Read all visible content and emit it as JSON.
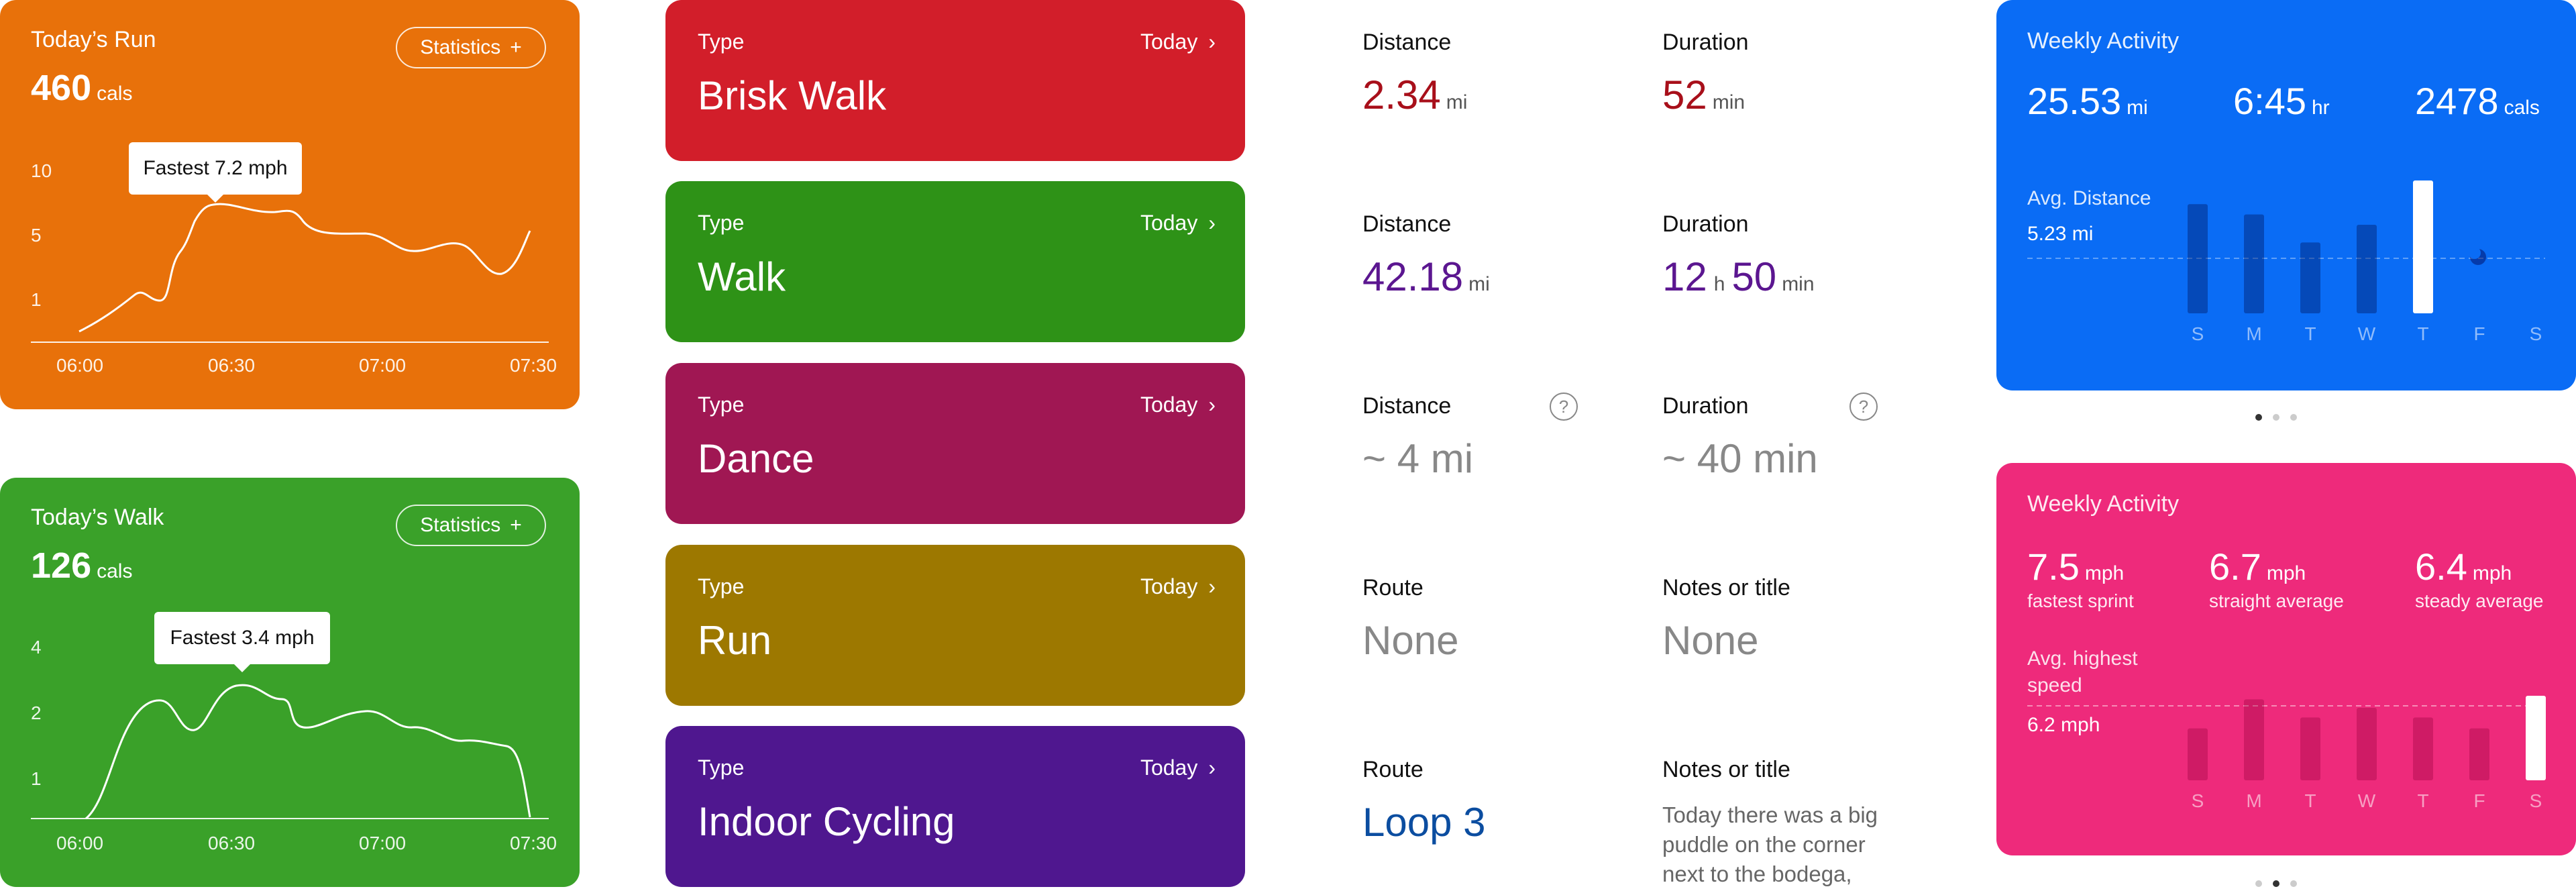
{
  "colors": {
    "run_card": "#E8710A",
    "walk_card": "#3AA129",
    "weekly_distance_card": "#0A6CF5",
    "weekly_speed_card": "#EE2A7B",
    "dark_red_value": "#A80F1A",
    "purple_value": "#5B1690",
    "route_blue": "#0B4DA0"
  },
  "run_card": {
    "title": "Today’s Run",
    "calories": "460",
    "cal_unit": "cals",
    "stats_button": "Statistics",
    "plus": "+",
    "tooltip": "Fastest 7.2 mph",
    "y_ticks": [
      "10",
      "5",
      "1"
    ],
    "x_ticks": [
      "06:00",
      "06:30",
      "07:00",
      "07:30"
    ]
  },
  "walk_card": {
    "title": "Today’s Walk",
    "calories": "126",
    "cal_unit": "cals",
    "stats_button": "Statistics",
    "plus": "+",
    "tooltip": "Fastest 3.4 mph",
    "y_ticks": [
      "4",
      "2",
      "1"
    ],
    "x_ticks": [
      "06:00",
      "06:30",
      "07:00",
      "07:30"
    ]
  },
  "activities": [
    {
      "type_label": "Type",
      "name": "Brisk Walk",
      "today": "Today",
      "color": "#D21E2A"
    },
    {
      "type_label": "Type",
      "name": "Walk",
      "today": "Today",
      "color": "#2E9217"
    },
    {
      "type_label": "Type",
      "name": "Dance",
      "today": "Today",
      "color": "#A01753"
    },
    {
      "type_label": "Type",
      "name": "Run",
      "today": "Today",
      "color": "#9D7800"
    },
    {
      "type_label": "Type",
      "name": "Indoor Cycling",
      "today": "Today",
      "color": "#4F178F"
    }
  ],
  "details": {
    "row1": {
      "distance_label": "Distance",
      "distance": "2.34",
      "distance_unit": "mi",
      "duration_label": "Duration",
      "duration": "52",
      "duration_unit": "min"
    },
    "row2": {
      "distance_label": "Distance",
      "distance": "42.18",
      "distance_unit": "mi",
      "duration_label": "Duration",
      "hours": "12",
      "hours_unit": "h",
      "minutes": "50",
      "minutes_unit": "min"
    },
    "row3": {
      "distance_label": "Distance",
      "distance": "~ 4 mi",
      "duration_label": "Duration",
      "duration": "~ 40 min",
      "help": "?"
    },
    "row4": {
      "route_label": "Route",
      "route": "None",
      "notes_label": "Notes or title",
      "notes": "None"
    },
    "row5": {
      "route_label": "Route",
      "route": "Loop 3",
      "notes_label": "Notes or title",
      "notes": "Today there was a big puddle on the corner next to the bodega,"
    }
  },
  "weekly_distance": {
    "title": "Weekly Activity",
    "stats": [
      {
        "value": "25.53",
        "unit": "mi"
      },
      {
        "value": "6:45",
        "unit": "hr"
      },
      {
        "value": "2478",
        "unit": "cals"
      }
    ],
    "avg_label": "Avg. Distance",
    "avg_value": "5.23 mi",
    "days": [
      "S",
      "M",
      "T",
      "W",
      "T",
      "F",
      "S"
    ],
    "bar_levels": [
      0.74,
      0.67,
      0.48,
      0.6,
      0.9,
      0,
      0
    ]
  },
  "weekly_speed": {
    "title": "Weekly Activity",
    "stats": [
      {
        "value": "7.5",
        "unit": "mph",
        "sub": "fastest sprint"
      },
      {
        "value": "6.7",
        "unit": "mph",
        "sub": "straight average"
      },
      {
        "value": "6.4",
        "unit": "mph",
        "sub": "steady average"
      }
    ],
    "avg_label_1": "Avg. highest",
    "avg_label_2": "speed",
    "avg_value": "6.2 mph",
    "days": [
      "S",
      "M",
      "T",
      "W",
      "T",
      "F",
      "S"
    ],
    "bar_levels": [
      0.43,
      0.67,
      0.52,
      0.6,
      0.52,
      0.43,
      0.7
    ]
  }
}
